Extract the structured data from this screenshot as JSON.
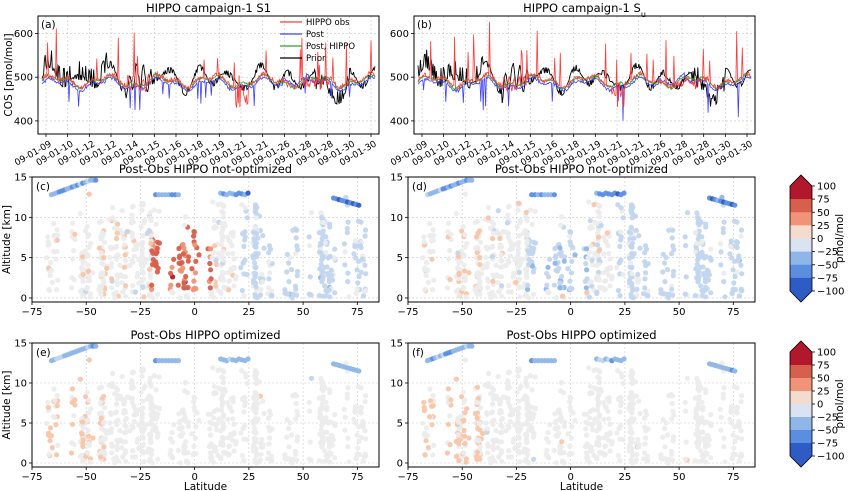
{
  "chart_data": [
    {
      "id": "a",
      "type": "line",
      "panel_label": "(a)",
      "title": "HIPPO campaign-1 S1",
      "ylabel": "COS [pmol/mol]",
      "ylim": [
        370,
        640
      ],
      "yticks": [
        400,
        500,
        600
      ],
      "xticklabels": [
        "09-01-09",
        "09-01-10",
        "09-01-12",
        "09-01-12",
        "09-01-14",
        "09-01-15",
        "09-01-16",
        "09-01-18",
        "09-01-19",
        "09-01-21",
        "09-01-21",
        "09-01-26",
        "09-01-28",
        "09-01-28",
        "09-01-30",
        "09-01-30"
      ],
      "legend_position": "top-right",
      "grid": true,
      "series": [
        {
          "name": "HIPPO obs",
          "color": "#ff3b3b"
        },
        {
          "name": "Post",
          "color": "#4040ff"
        },
        {
          "name": "Post, HIPPO",
          "color": "#2ca02c"
        },
        {
          "name": "Prior",
          "color": "#000000"
        }
      ]
    },
    {
      "id": "b",
      "type": "line",
      "panel_label": "(b)",
      "title": "HIPPO campaign-1 S",
      "title_sub": "u",
      "ylim": [
        370,
        640
      ],
      "yticks": [
        400,
        500,
        600
      ],
      "xticklabels": [
        "09-01-09",
        "09-01-10",
        "09-01-12",
        "09-01-12",
        "09-01-14",
        "09-01-15",
        "09-01-16",
        "09-01-18",
        "09-01-19",
        "09-01-21",
        "09-01-21",
        "09-01-26",
        "09-01-28",
        "09-01-28",
        "09-01-30",
        "09-01-30"
      ],
      "grid": true
    },
    {
      "id": "c",
      "type": "scatter",
      "panel_label": "(c)",
      "title": "Post-Obs HIPPO not-optimized",
      "ylabel": "Altitude [km]",
      "xlim": [
        -75,
        85
      ],
      "ylim": [
        -0.5,
        15
      ],
      "xticks": [
        -75,
        -50,
        -25,
        0,
        25,
        50,
        75
      ],
      "yticks": [
        0,
        5,
        10,
        15
      ],
      "grid": true
    },
    {
      "id": "d",
      "type": "scatter",
      "panel_label": "(d)",
      "title": "Post-Obs HIPPO not-optimized",
      "xlim": [
        -75,
        85
      ],
      "ylim": [
        -0.5,
        15
      ],
      "xticks": [
        -75,
        -50,
        -25,
        0,
        25,
        50,
        75
      ],
      "yticks": [
        0,
        5,
        10,
        15
      ],
      "grid": true
    },
    {
      "id": "e",
      "type": "scatter",
      "panel_label": "(e)",
      "title": "Post-Obs HIPPO optimized",
      "ylabel": "Altitude [km]",
      "xlabel": "Latitude",
      "xlim": [
        -75,
        85
      ],
      "ylim": [
        -0.5,
        15
      ],
      "xticks": [
        -75,
        -50,
        -25,
        0,
        25,
        50,
        75
      ],
      "yticks": [
        0,
        5,
        10,
        15
      ],
      "grid": true
    },
    {
      "id": "f",
      "type": "scatter",
      "panel_label": "(f)",
      "title": "Post-Obs HIPPO optimized",
      "xlabel": "Latitude",
      "xlim": [
        -75,
        85
      ],
      "ylim": [
        -0.5,
        15
      ],
      "xticks": [
        -75,
        -50,
        -25,
        0,
        25,
        50,
        75
      ],
      "yticks": [
        0,
        5,
        10,
        15
      ],
      "grid": true
    }
  ],
  "colorbar": {
    "label": "pmol/mol",
    "range": [
      -100,
      100
    ],
    "ticks": [
      "100",
      "75",
      "50",
      "25",
      "0",
      "−25",
      "−50",
      "−75",
      "−100"
    ],
    "colors": [
      "#b2182b",
      "#d6604d",
      "#f09376",
      "#f8c6aa",
      "#ececec",
      "#c3d6ee",
      "#8fb6e8",
      "#5c8ee0",
      "#2f5bc4"
    ]
  }
}
